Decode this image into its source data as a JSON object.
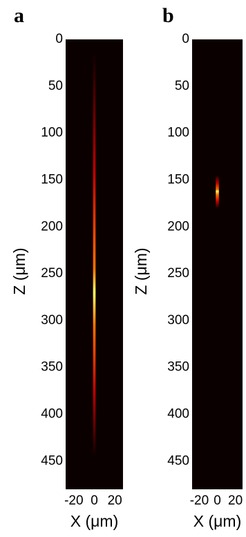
{
  "chart_data": [
    {
      "type": "heatmap",
      "panel_label": "a",
      "xlabel": "X (μm)",
      "ylabel": "Z (μm)",
      "xlim": [
        -28,
        28
      ],
      "ylim": [
        0,
        480
      ],
      "xticks": [
        -20,
        0,
        20
      ],
      "yticks": [
        0,
        50,
        100,
        150,
        200,
        250,
        300,
        350,
        400,
        450
      ],
      "background": "#0b0000",
      "colors": [
        "#0b0000",
        "#c00000",
        "#ff7000",
        "#ffff60"
      ],
      "beam": {
        "x": 0,
        "width": 2.5,
        "z": [
          15,
          445
        ],
        "peak_z": 270
      }
    },
    {
      "type": "heatmap",
      "panel_label": "b",
      "xlabel": "X (μm)",
      "ylabel": "Z (μm)",
      "xlim": [
        -28,
        28
      ],
      "ylim": [
        0,
        480
      ],
      "xticks": [
        -20,
        0,
        20
      ],
      "yticks": [
        0,
        50,
        100,
        150,
        200,
        250,
        300,
        350,
        400,
        450
      ],
      "background": "#0b0000",
      "colors": [
        "#0b0000",
        "#c00000",
        "#ff7000",
        "#ffff60"
      ],
      "beam": {
        "x": 0,
        "width": 3.5,
        "z": [
          145,
          180
        ],
        "peak_z": 162
      }
    }
  ]
}
